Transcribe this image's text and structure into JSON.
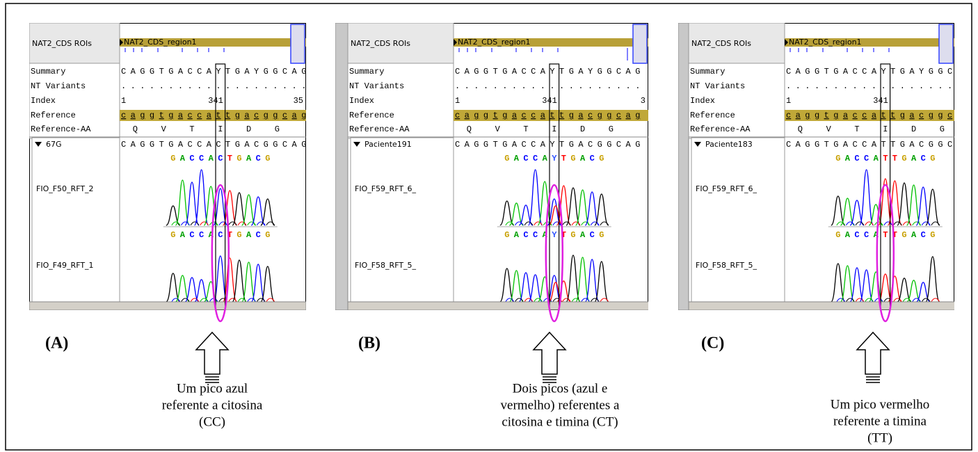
{
  "panels": [
    {
      "label": "(A)",
      "roi_track": "NAT2_CDS ROIs",
      "roi_region": "NAT2_CDS_region1",
      "rows": [
        "Summary",
        "NT Variants",
        "Index",
        "Reference",
        "Reference-AA"
      ],
      "summary": "CAGGTGACCAYTGAYGGCAG",
      "nt_variants": "....................",
      "index_labels": [
        "1",
        "341",
        "35"
      ],
      "reference": "caggtgaccattgacggcag",
      "reference_aa": [
        "Q",
        "V",
        "T",
        "I",
        "D",
        "G"
      ],
      "sample": "67G",
      "consensus": "CAGGTGACCACTGACGGCAG",
      "reads": [
        {
          "name": "FIO_F50_RFT_2",
          "bases": [
            "G",
            "A",
            "C",
            "C",
            "A",
            "C",
            "T",
            "G",
            "A",
            "C",
            "G"
          ]
        },
        {
          "name": "FIO_F49_RFT_1",
          "bases": [
            "G",
            "A",
            "C",
            "C",
            "A",
            "C",
            "T",
            "G",
            "A",
            "C",
            "G"
          ]
        }
      ],
      "caption": [
        "Um pico azul",
        "referente a citosina",
        "(CC)"
      ]
    },
    {
      "label": "(B)",
      "roi_track": "NAT2_CDS ROIs",
      "roi_region": "NAT2_CDS_region1",
      "rows": [
        "Summary",
        "NT Variants",
        "Index",
        "Reference",
        "Reference-AA"
      ],
      "summary": "CAGGTGACCAYTGAYGGCAG",
      "nt_variants": "....................",
      "index_labels": [
        "1",
        "341",
        "3"
      ],
      "reference": "caggtgaccattgacggcag",
      "reference_aa": [
        "Q",
        "V",
        "T",
        "I",
        "D",
        "G"
      ],
      "sample": "Paciente191",
      "consensus": "CAGGTGACCAYTGACGGCAG",
      "reads": [
        {
          "name": "FIO_F59_RFT_6_",
          "bases": [
            "G",
            "A",
            "C",
            "C",
            "A",
            "Y",
            "T",
            "G",
            "A",
            "C",
            "G"
          ]
        },
        {
          "name": "FIO_F58_RFT_5_",
          "bases": [
            "G",
            "A",
            "C",
            "C",
            "A",
            "Y",
            "T",
            "G",
            "A",
            "C",
            "G"
          ]
        }
      ],
      "caption": [
        "Dois picos (azul e",
        "vermelho) referentes a",
        "citosina e timina (CT)"
      ]
    },
    {
      "label": "(C)",
      "roi_track": "NAT2_CDS ROIs",
      "roi_region": "NAT2_CDS_region1",
      "rows": [
        "Summary",
        "NT Variants",
        "Index",
        "Reference",
        "Reference-AA"
      ],
      "summary": "CAGGTGACCAYTGAYGGC",
      "nt_variants": "..................",
      "index_labels": [
        "1",
        "341"
      ],
      "reference": "caggtgaccattgacggc",
      "reference_aa": [
        "Q",
        "V",
        "T",
        "I",
        "D",
        "G"
      ],
      "sample": "Paciente183",
      "consensus": "CAGGTGACCATTGACGGC",
      "reads": [
        {
          "name": "FIO_F59_RFT_6_",
          "bases": [
            "G",
            "A",
            "C",
            "C",
            "A",
            "T",
            "T",
            "G",
            "A",
            "C",
            "G"
          ]
        },
        {
          "name": "FIO_F58_RFT_5_",
          "bases": [
            "G",
            "A",
            "C",
            "C",
            "A",
            "T",
            "T",
            "G",
            "A",
            "C",
            "G"
          ]
        }
      ],
      "caption": [
        "Um pico vermelho",
        "referente a timina",
        "(TT)"
      ]
    }
  ]
}
